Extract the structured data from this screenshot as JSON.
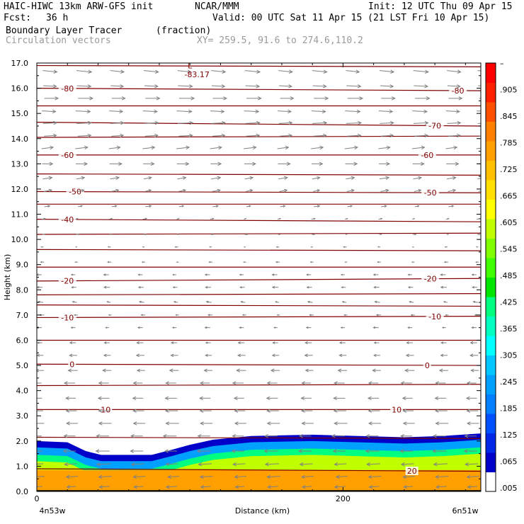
{
  "header": {
    "model": "HAIC-HIWC 13km ARW-GFS init",
    "org": "NCAR/MMM",
    "init": "Init: 12 UTC Thu 09 Apr 15",
    "fcst_label": "Fcst:",
    "fcst_value": "36 h",
    "valid": "Valid: 00 UTC Sat 11 Apr 15 (21 LST Fri 10 Apr 15)",
    "field": "Boundary Layer Tracer",
    "field_units": "(fraction)",
    "vectors": "Circulation vectors",
    "xy": "XY= 259.5, 91.6 to 274.6,110.2"
  },
  "colors": {
    "contour": "#800000",
    "vector": "#808080",
    "tracer_scale": [
      "#ffffff",
      "#0000c8",
      "#0028e6",
      "#0050ff",
      "#0080ff",
      "#00a0ff",
      "#00c8ff",
      "#00ffff",
      "#00ffc0",
      "#00ff80",
      "#00e600",
      "#40ff00",
      "#80ff00",
      "#c0ff00",
      "#ffff00",
      "#ffe000",
      "#ffc000",
      "#ffa000",
      "#ff8000",
      "#ff5000",
      "#ff2000",
      "#ff0000"
    ]
  },
  "chart_data": {
    "type": "heatmap",
    "title": "Boundary Layer Tracer",
    "xlabel": "Distance (km)",
    "ylabel": "Height (km)",
    "xlim": [
      0,
      290
    ],
    "ylim": [
      0.0,
      17.0
    ],
    "x_ticks": [
      0,
      200
    ],
    "x_tick_labels": [
      "0",
      "200"
    ],
    "x_endpoints": [
      "4n53w",
      "6n51w"
    ],
    "y_ticks": [
      0.0,
      1.0,
      2.0,
      3.0,
      4.0,
      5.0,
      6.0,
      7.0,
      8.0,
      9.0,
      10.0,
      11.0,
      12.0,
      13.0,
      14.0,
      15.0,
      16.0,
      17.0
    ],
    "y_tick_labels": [
      "0.0",
      "1.0",
      "2.0",
      "3.0",
      "4.0",
      "5.0",
      "6.0",
      "7.0",
      "8.0",
      "9.0",
      "10.0",
      "11.0",
      "12.0",
      "13.0",
      "14.0",
      "15.0",
      "16.0",
      "17.0"
    ],
    "colorbar_labels": [
      "–",
      ".905",
      ".845",
      ".785",
      ".725",
      ".665",
      ".605",
      ".545",
      ".485",
      ".425",
      ".365",
      ".305",
      ".245",
      ".185",
      ".125",
      ".065",
      ".005"
    ],
    "colorbar_values": [
      null,
      0.905,
      0.845,
      0.785,
      0.725,
      0.665,
      0.605,
      0.545,
      0.485,
      0.425,
      0.365,
      0.305,
      0.245,
      0.185,
      0.125,
      0.065,
      0.005
    ],
    "temperature_contours": [
      {
        "label": "-80",
        "heights": [
          16.0,
          15.9
        ],
        "label_x": [
          20,
          275
        ]
      },
      {
        "label": "-70",
        "heights": [
          14.65,
          14.5
        ],
        "label_x": [
          260
        ]
      },
      {
        "label": "-60",
        "heights": [
          13.35,
          13.35
        ],
        "label_x": [
          20,
          255
        ]
      },
      {
        "label": "-50",
        "heights": [
          11.9,
          11.85
        ],
        "label_x": [
          25,
          257
        ]
      },
      {
        "label": "-40",
        "heights": [
          10.8,
          10.7
        ],
        "label_x": [
          20
        ]
      },
      {
        "label": "-20",
        "heights": [
          8.35,
          8.45
        ],
        "label_x": [
          20,
          257
        ]
      },
      {
        "label": "-10",
        "heights": [
          6.9,
          6.95
        ],
        "label_x": [
          20,
          260
        ]
      },
      {
        "label": "0",
        "heights": [
          5.05,
          5.0
        ],
        "label_x": [
          23,
          255
        ]
      },
      {
        "label": "10",
        "heights": [
          3.25,
          3.25
        ],
        "label_x": [
          45,
          235
        ]
      },
      {
        "label": "20",
        "heights": [
          0.9,
          0.8
        ],
        "label_x": [
          245
        ]
      }
    ],
    "extra_contour_heights": [
      16.9,
      15.3,
      14.05,
      12.6,
      11.4,
      10.2,
      9.6,
      8.9,
      7.8,
      7.4,
      6.0,
      4.2,
      2.15
    ],
    "annotations": [
      {
        "text": "L",
        "x": 100,
        "y": 16.9
      },
      {
        "text": "-83.17",
        "x": 100,
        "y": 16.55
      }
    ],
    "tracer_columns": [
      {
        "x": 0,
        "top": 2.0
      },
      {
        "x": 20,
        "top": 1.95
      },
      {
        "x": 32,
        "top": 1.6
      },
      {
        "x": 42,
        "top": 1.45
      },
      {
        "x": 75,
        "top": 1.45
      },
      {
        "x": 88,
        "top": 1.65
      },
      {
        "x": 100,
        "top": 1.85
      },
      {
        "x": 115,
        "top": 2.05
      },
      {
        "x": 140,
        "top": 2.2
      },
      {
        "x": 180,
        "top": 2.25
      },
      {
        "x": 210,
        "top": 2.2
      },
      {
        "x": 240,
        "top": 2.15
      },
      {
        "x": 265,
        "top": 2.2
      },
      {
        "x": 290,
        "top": 2.3
      }
    ],
    "tracer_levels": [
      {
        "value": 0.005,
        "top_offset": 0.0
      },
      {
        "value": 0.245,
        "top_offset": 0.25
      },
      {
        "value": 0.485,
        "top_offset": 0.55
      },
      {
        "value": 0.725,
        "top_offset": 0.8
      },
      {
        "value": 0.965,
        "height": 0.85
      }
    ],
    "vector_columns_x": [
      3,
      25,
      47,
      69,
      91,
      113,
      135,
      157,
      179,
      201,
      223,
      245,
      267,
      287
    ],
    "vector_rows": [
      {
        "y": 16.7,
        "u": 1.0,
        "v": -0.1
      },
      {
        "y": 16.1,
        "u": 0.95,
        "v": -0.05
      },
      {
        "y": 15.6,
        "u": 1.0,
        "v": 0.0
      },
      {
        "y": 15.1,
        "u": 1.0,
        "v": -0.05
      },
      {
        "y": 14.6,
        "u": 1.0,
        "v": 0.05
      },
      {
        "y": 14.1,
        "u": 0.9,
        "v": 0.05
      },
      {
        "y": 13.6,
        "u": 0.85,
        "v": 0.1
      },
      {
        "y": 13.0,
        "u": 0.8,
        "v": 0.0
      },
      {
        "y": 12.4,
        "u": 0.6,
        "v": 0.1
      },
      {
        "y": 11.9,
        "u": 0.5,
        "v": 0.1
      },
      {
        "y": 11.3,
        "u": 0.35,
        "v": 0.05
      },
      {
        "y": 10.8,
        "u": 0.2,
        "v": 0.05
      },
      {
        "y": 10.2,
        "u": 0.15,
        "v": 0.0
      },
      {
        "y": 9.7,
        "u": -0.15,
        "v": 0.0
      },
      {
        "y": 9.1,
        "u": -0.2,
        "v": 0.0
      },
      {
        "y": 8.6,
        "u": -0.3,
        "v": 0.0
      },
      {
        "y": 8.1,
        "u": -0.35,
        "v": 0.0
      },
      {
        "y": 7.5,
        "u": -0.3,
        "v": 0.05
      },
      {
        "y": 7.0,
        "u": -0.25,
        "v": 0.0
      },
      {
        "y": 6.5,
        "u": -0.3,
        "v": 0.0
      },
      {
        "y": 5.9,
        "u": -0.4,
        "v": 0.0
      },
      {
        "y": 5.4,
        "u": -0.5,
        "v": 0.0
      },
      {
        "y": 4.8,
        "u": -0.6,
        "v": 0.0
      },
      {
        "y": 4.3,
        "u": -0.7,
        "v": 0.0
      },
      {
        "y": 3.7,
        "u": -0.75,
        "v": 0.0
      },
      {
        "y": 3.2,
        "u": -0.8,
        "v": 0.0
      },
      {
        "y": 2.7,
        "u": -0.85,
        "v": 0.0
      },
      {
        "y": 2.2,
        "u": -0.85,
        "v": 0.0
      },
      {
        "y": 1.6,
        "u": -0.9,
        "v": 0.0
      },
      {
        "y": 1.1,
        "u": -0.9,
        "v": -0.05
      },
      {
        "y": 0.6,
        "u": -0.85,
        "v": -0.05
      },
      {
        "y": 0.2,
        "u": -0.7,
        "v": -0.05
      }
    ]
  }
}
